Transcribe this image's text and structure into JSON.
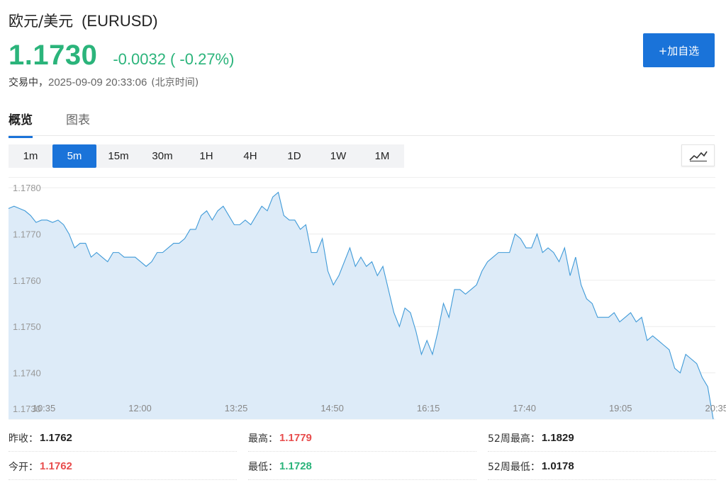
{
  "header": {
    "name": "欧元/美元",
    "code": "(EURUSD)",
    "price": "1.1730",
    "change": "-0.0032",
    "change_pct": "( -0.27%)",
    "status": "交易中，",
    "datetime": "2025-09-09 20:33:06",
    "timezone": "(北京时间)",
    "watch_button": "+加自选"
  },
  "tabs": [
    {
      "label": "概览",
      "active": true
    },
    {
      "label": "图表",
      "active": false
    }
  ],
  "periods": [
    {
      "label": "1m",
      "active": false
    },
    {
      "label": "5m",
      "active": true
    },
    {
      "label": "15m",
      "active": false
    },
    {
      "label": "30m",
      "active": false
    },
    {
      "label": "1H",
      "active": false
    },
    {
      "label": "4H",
      "active": false
    },
    {
      "label": "1D",
      "active": false
    },
    {
      "label": "1W",
      "active": false
    },
    {
      "label": "1M",
      "active": false
    }
  ],
  "chart_type_icon": "line-chart-icon",
  "colors": {
    "accent": "#1a73d9",
    "up": "#e84d4d",
    "down": "#2bb47b",
    "line": "#3f9ad8",
    "fill": "#ddebf8"
  },
  "stats": {
    "prev_close": {
      "label": "昨收：",
      "value": "1.1762",
      "tone": "neutral"
    },
    "high": {
      "label": "最高：",
      "value": "1.1779",
      "tone": "up"
    },
    "high_52w": {
      "label": "52周最高：",
      "value": "1.1829",
      "tone": "neutral"
    },
    "open": {
      "label": "今开：",
      "value": "1.1762",
      "tone": "up"
    },
    "low": {
      "label": "最低：",
      "value": "1.1728",
      "tone": "down"
    },
    "low_52w": {
      "label": "52周最低：",
      "value": "1.0178",
      "tone": "neutral"
    }
  },
  "chart_data": {
    "type": "area",
    "ylim": [
      1.173,
      1.1782
    ],
    "y_ticks": [
      "1.1780",
      "1.1770",
      "1.1760",
      "1.1750",
      "1.1740",
      "1.1730"
    ],
    "x_ticks": [
      "10:35",
      "12:00",
      "13:25",
      "14:50",
      "16:15",
      "17:40",
      "19:05",
      "20:35"
    ],
    "grid": true,
    "series": [
      {
        "values": [
          1.17755,
          1.1776,
          1.17755,
          1.1775,
          1.1774,
          1.17725,
          1.1773,
          1.1773,
          1.17725,
          1.1773,
          1.1772,
          1.177,
          1.1767,
          1.1768,
          1.1768,
          1.1765,
          1.1766,
          1.1765,
          1.1764,
          1.1766,
          1.1766,
          1.1765,
          1.1765,
          1.1765,
          1.1764,
          1.1763,
          1.1764,
          1.1766,
          1.1766,
          1.1767,
          1.1768,
          1.1768,
          1.1769,
          1.1771,
          1.1771,
          1.1774,
          1.1775,
          1.1773,
          1.1775,
          1.1776,
          1.1774,
          1.1772,
          1.1772,
          1.1773,
          1.1772,
          1.1774,
          1.1776,
          1.1775,
          1.1778,
          1.1779,
          1.1774,
          1.1773,
          1.1773,
          1.1771,
          1.1772,
          1.1766,
          1.1766,
          1.1769,
          1.1762,
          1.1759,
          1.1761,
          1.1764,
          1.1767,
          1.1763,
          1.1765,
          1.1763,
          1.1764,
          1.1761,
          1.1763,
          1.1758,
          1.1753,
          1.175,
          1.1754,
          1.1753,
          1.1749,
          1.1744,
          1.1747,
          1.1744,
          1.1749,
          1.1755,
          1.1752,
          1.1758,
          1.1758,
          1.1757,
          1.1758,
          1.1759,
          1.1762,
          1.1764,
          1.1765,
          1.1766,
          1.1766,
          1.1766,
          1.177,
          1.1769,
          1.1767,
          1.1767,
          1.177,
          1.1766,
          1.1767,
          1.1766,
          1.1764,
          1.1767,
          1.1761,
          1.1765,
          1.1759,
          1.1756,
          1.1755,
          1.1752,
          1.1752,
          1.1752,
          1.1753,
          1.1751,
          1.1752,
          1.1753,
          1.1751,
          1.1752,
          1.1747,
          1.1748,
          1.1747,
          1.1746,
          1.1745,
          1.1741,
          1.174,
          1.1744,
          1.1743,
          1.1742,
          1.1739,
          1.1737,
          1.173
        ]
      }
    ]
  }
}
